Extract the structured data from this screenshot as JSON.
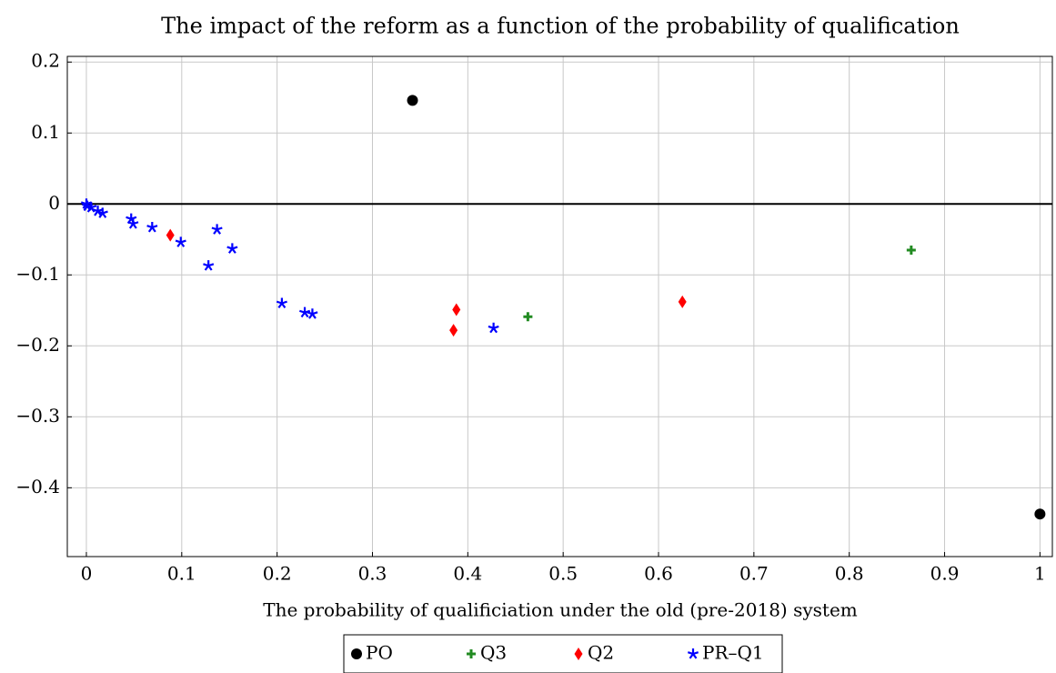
{
  "chart_data": {
    "type": "scatter",
    "title": "The impact of the reform as a function of the probability of qualification",
    "xlabel": "The probability of qualificiation under the old (pre-2018) system",
    "xlim": [
      -0.02,
      1.013
    ],
    "ylim": [
      -0.497,
      0.208
    ],
    "xticks": [
      0,
      0.1,
      0.2,
      0.3,
      0.4,
      0.5,
      0.6,
      0.7,
      0.8,
      0.9,
      1
    ],
    "yticks": [
      {
        "value": -0.4,
        "label": "−0.4"
      },
      {
        "value": -0.3,
        "label": "−0.3"
      },
      {
        "value": -0.2,
        "label": "−0.2"
      },
      {
        "value": -0.1,
        "label": "−0.1"
      },
      0,
      0.1,
      0.2
    ],
    "grid": true,
    "legend": "bottom",
    "series": [
      {
        "name": "PO",
        "color": "#000000",
        "marker": "circle",
        "x": [
          0.342,
          1.0
        ],
        "values": [
          0.146,
          -0.437
        ]
      },
      {
        "name": "Q3",
        "color": "#228b22",
        "marker": "plus",
        "x": [
          0.865,
          0.463
        ],
        "values": [
          -0.065,
          -0.159
        ]
      },
      {
        "name": "Q2",
        "color": "#ff0000",
        "marker": "diamond",
        "x": [
          0.088,
          0.388,
          0.385,
          0.625
        ],
        "values": [
          -0.044,
          -0.149,
          -0.178,
          -0.138
        ]
      },
      {
        "name": "PR–Q1",
        "color": "#0000ff",
        "marker": "star",
        "x": [
          0,
          0.001,
          0.005,
          0.012,
          0.017,
          0.047,
          0.049,
          0.069,
          0.099,
          0.128,
          0.137,
          0.153,
          0.205,
          0.229,
          0.237,
          0.427
        ],
        "values": [
          0,
          -0.003,
          -0.005,
          -0.01,
          -0.013,
          -0.021,
          -0.028,
          -0.033,
          -0.054,
          -0.087,
          -0.036,
          -0.063,
          -0.14,
          -0.153,
          -0.155,
          -0.175
        ]
      }
    ]
  }
}
